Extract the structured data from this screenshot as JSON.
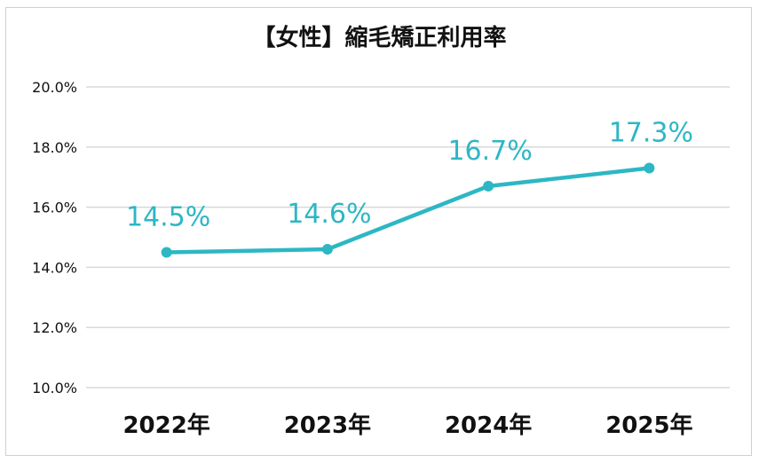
{
  "chart_data": {
    "type": "line",
    "title": "【女性】縮毛矯正利用率",
    "categories": [
      "2022年",
      "2023年",
      "2024年",
      "2025年"
    ],
    "series": [
      {
        "values": [
          14.5,
          14.6,
          16.7,
          17.3
        ],
        "labels": [
          "14.5%",
          "14.6%",
          "16.7%",
          "17.3%"
        ]
      }
    ],
    "y_ticks": [
      "10.0%",
      "12.0%",
      "14.0%",
      "16.0%",
      "18.0%",
      "20.0%"
    ],
    "ylim": [
      10,
      20
    ],
    "y_step": 2,
    "grid": true,
    "legend": "none",
    "colors": {
      "line": "#2db7c4",
      "grid": "#d9d9d9"
    }
  }
}
